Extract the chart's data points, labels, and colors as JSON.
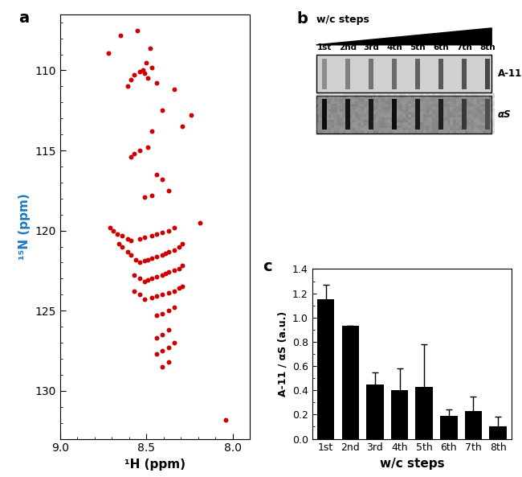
{
  "panel_a_label": "a",
  "panel_b_label": "b",
  "panel_c_label": "c",
  "nmr_points": [
    [
      8.55,
      107.5
    ],
    [
      8.65,
      107.8
    ],
    [
      8.48,
      108.6
    ],
    [
      8.72,
      108.9
    ],
    [
      8.5,
      109.5
    ],
    [
      8.47,
      109.8
    ],
    [
      8.52,
      110.0
    ],
    [
      8.54,
      110.1
    ],
    [
      8.51,
      110.2
    ],
    [
      8.57,
      110.3
    ],
    [
      8.49,
      110.5
    ],
    [
      8.59,
      110.6
    ],
    [
      8.44,
      110.8
    ],
    [
      8.34,
      111.2
    ],
    [
      8.61,
      111.0
    ],
    [
      8.41,
      112.5
    ],
    [
      8.24,
      112.8
    ],
    [
      8.29,
      113.5
    ],
    [
      8.47,
      113.8
    ],
    [
      8.49,
      114.8
    ],
    [
      8.54,
      115.0
    ],
    [
      8.57,
      115.2
    ],
    [
      8.59,
      115.4
    ],
    [
      8.44,
      116.5
    ],
    [
      8.41,
      116.8
    ],
    [
      8.37,
      117.5
    ],
    [
      8.47,
      117.8
    ],
    [
      8.51,
      117.9
    ],
    [
      8.19,
      119.5
    ],
    [
      8.34,
      119.8
    ],
    [
      8.37,
      120.0
    ],
    [
      8.41,
      120.1
    ],
    [
      8.44,
      120.2
    ],
    [
      8.47,
      120.3
    ],
    [
      8.51,
      120.4
    ],
    [
      8.54,
      120.5
    ],
    [
      8.59,
      120.6
    ],
    [
      8.61,
      120.5
    ],
    [
      8.64,
      120.3
    ],
    [
      8.67,
      120.2
    ],
    [
      8.69,
      120.0
    ],
    [
      8.71,
      119.8
    ],
    [
      8.29,
      120.8
    ],
    [
      8.31,
      121.0
    ],
    [
      8.34,
      121.2
    ],
    [
      8.37,
      121.3
    ],
    [
      8.39,
      121.4
    ],
    [
      8.41,
      121.5
    ],
    [
      8.44,
      121.6
    ],
    [
      8.47,
      121.7
    ],
    [
      8.49,
      121.8
    ],
    [
      8.51,
      121.9
    ],
    [
      8.54,
      122.0
    ],
    [
      8.56,
      121.8
    ],
    [
      8.59,
      121.5
    ],
    [
      8.61,
      121.3
    ],
    [
      8.64,
      121.0
    ],
    [
      8.66,
      120.8
    ],
    [
      8.29,
      122.2
    ],
    [
      8.31,
      122.4
    ],
    [
      8.34,
      122.5
    ],
    [
      8.37,
      122.6
    ],
    [
      8.39,
      122.7
    ],
    [
      8.41,
      122.8
    ],
    [
      8.44,
      122.9
    ],
    [
      8.47,
      123.0
    ],
    [
      8.49,
      123.1
    ],
    [
      8.51,
      123.2
    ],
    [
      8.54,
      123.0
    ],
    [
      8.57,
      122.8
    ],
    [
      8.29,
      123.5
    ],
    [
      8.31,
      123.6
    ],
    [
      8.34,
      123.8
    ],
    [
      8.37,
      123.9
    ],
    [
      8.41,
      124.0
    ],
    [
      8.44,
      124.1
    ],
    [
      8.47,
      124.2
    ],
    [
      8.51,
      124.3
    ],
    [
      8.54,
      124.0
    ],
    [
      8.57,
      123.8
    ],
    [
      8.34,
      124.8
    ],
    [
      8.37,
      125.0
    ],
    [
      8.41,
      125.2
    ],
    [
      8.44,
      125.3
    ],
    [
      8.37,
      126.2
    ],
    [
      8.41,
      126.5
    ],
    [
      8.44,
      126.7
    ],
    [
      8.34,
      127.0
    ],
    [
      8.37,
      127.3
    ],
    [
      8.41,
      127.5
    ],
    [
      8.44,
      127.7
    ],
    [
      8.37,
      128.2
    ],
    [
      8.41,
      128.5
    ],
    [
      8.04,
      131.8
    ]
  ],
  "bar_values": [
    1.15,
    0.93,
    0.45,
    0.4,
    0.43,
    0.19,
    0.23,
    0.1
  ],
  "bar_errors": [
    0.12,
    0.0,
    0.1,
    0.18,
    0.35,
    0.05,
    0.12,
    0.08
  ],
  "bar_labels": [
    "1st",
    "2nd",
    "3rd",
    "4th",
    "5th",
    "6th",
    "7th",
    "8th"
  ],
  "bar_color": "#000000",
  "bar_xlabel": "w/c steps",
  "bar_ylabel": "A-11 / αS (a.u.)",
  "nmr_xlabel": "¹H (ppm)",
  "nmr_ylabel": "¹⁵N (ppm)",
  "nmr_xlim": [
    9.0,
    7.9
  ],
  "nmr_ylim": [
    133.0,
    106.5
  ],
  "nmr_xticks": [
    9.0,
    8.5,
    8.0
  ],
  "nmr_yticks": [
    110,
    115,
    120,
    125,
    130
  ],
  "bar_ylim": [
    0.0,
    1.4
  ],
  "bar_yticks": [
    0.0,
    0.2,
    0.4,
    0.6,
    0.8,
    1.0,
    1.2,
    1.4
  ],
  "dot_color": "#cc0000",
  "dot_size": 18,
  "wc_steps_label": "w/c steps",
  "a11_label": "A-11",
  "as_label": "αS",
  "a11_bg": 0.82,
  "as_bg": 0.55,
  "a11_bar_darkness": [
    0.55,
    0.5,
    0.45,
    0.42,
    0.38,
    0.35,
    0.32,
    0.28
  ],
  "as_bar_darkness": [
    0.05,
    0.08,
    0.1,
    0.05,
    0.1,
    0.12,
    0.22,
    0.3
  ]
}
